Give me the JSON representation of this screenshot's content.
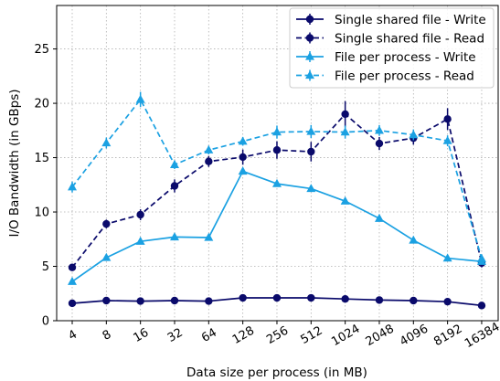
{
  "chart_data": {
    "type": "line",
    "xlabel": "Data size per process (in MB)",
    "ylabel": "I/O Bandwidth (in GBps)",
    "categories": [
      "4",
      "8",
      "16",
      "32",
      "64",
      "128",
      "256",
      "512",
      "1024",
      "2048",
      "4096",
      "8192",
      "16384"
    ],
    "ylim": [
      0,
      29
    ],
    "yticks": [
      0,
      5,
      10,
      15,
      20,
      25
    ],
    "grid": true,
    "legend_position": "top-right",
    "series": [
      {
        "name": "Single shared file - Write",
        "color": "#0a0a6b",
        "style": "solid",
        "marker": "circle",
        "values": [
          1.6,
          1.85,
          1.8,
          1.85,
          1.8,
          2.1,
          2.1,
          2.1,
          2.0,
          1.9,
          1.85,
          1.75,
          1.4
        ],
        "errors": [
          0.2,
          0.15,
          0.15,
          0.15,
          0.15,
          0.15,
          0.15,
          0.15,
          0.15,
          0.15,
          0.15,
          0.15,
          0.2
        ]
      },
      {
        "name": "Single shared file - Read",
        "color": "#0a0a6b",
        "style": "dashed",
        "marker": "circle",
        "values": [
          4.9,
          8.9,
          9.75,
          12.4,
          14.65,
          15.05,
          15.7,
          15.55,
          19.0,
          16.3,
          16.8,
          18.55,
          5.3
        ],
        "errors": [
          0.3,
          0.4,
          0.5,
          0.6,
          0.5,
          0.7,
          0.8,
          0.9,
          1.2,
          0.6,
          0.6,
          1.0,
          0.4
        ]
      },
      {
        "name": "File per process - Write",
        "color": "#1ba1e2",
        "style": "solid",
        "marker": "triangle",
        "values": [
          3.6,
          5.8,
          7.3,
          7.7,
          7.65,
          13.75,
          12.6,
          12.15,
          11.0,
          9.4,
          7.4,
          5.75,
          5.45
        ],
        "errors": [
          0.15,
          0.15,
          0.15,
          0.15,
          0.15,
          0.2,
          0.2,
          0.2,
          0.2,
          0.2,
          0.15,
          0.15,
          0.15
        ]
      },
      {
        "name": "File per process - Read",
        "color": "#1ba1e2",
        "style": "dashed",
        "marker": "triangle",
        "values": [
          12.3,
          16.35,
          20.35,
          14.35,
          15.7,
          16.5,
          17.35,
          17.4,
          17.35,
          17.5,
          17.1,
          16.55,
          5.7
        ],
        "errors": [
          0.5,
          0.5,
          0.7,
          0.4,
          0.4,
          0.4,
          0.6,
          0.6,
          0.6,
          0.5,
          0.5,
          0.5,
          0.4
        ]
      }
    ]
  }
}
